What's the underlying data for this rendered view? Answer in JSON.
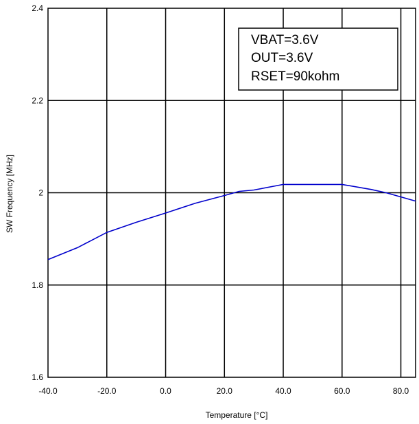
{
  "chart_data": {
    "type": "line",
    "title": "",
    "xlabel": "Temperature [°C]",
    "ylabel": "SW Frequency [MHz]",
    "xlim": [
      -40,
      85
    ],
    "ylim": [
      1.6,
      2.4
    ],
    "x_ticks": [
      "-40.0",
      "-20.0",
      "0.0",
      "20.0",
      "40.0",
      "60.0",
      "80.0"
    ],
    "y_ticks": [
      "1.6",
      "1.8",
      "2",
      "2.2",
      "2.4"
    ],
    "grid": true,
    "annotation": [
      "VBAT=3.6V",
      "OUT=3.6V",
      "RSET=90kohm"
    ],
    "series": [
      {
        "color": "#0000cc",
        "x": [
          -40,
          -30,
          -20,
          -10,
          0,
          10,
          20,
          25,
          30,
          40,
          50,
          60,
          70,
          75,
          85
        ],
        "y": [
          1.855,
          1.881,
          1.914,
          1.936,
          1.956,
          1.977,
          1.994,
          2.003,
          2.006,
          2.018,
          2.018,
          2.018,
          2.007,
          2.0,
          1.982
        ]
      }
    ]
  }
}
